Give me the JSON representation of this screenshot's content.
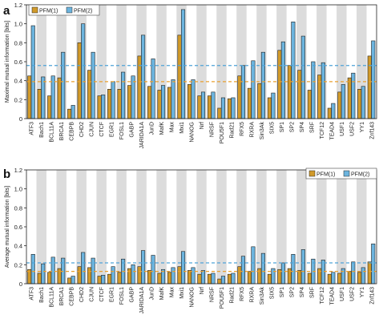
{
  "colors": {
    "pfm1": "#D19A2A",
    "pfm2": "#6CB4DE",
    "stripe": "#DCDCDC",
    "mean_pfm1": "#E8A030",
    "mean_pfm2": "#4FA3D8"
  },
  "chart_data": [
    {
      "panel_label": "a",
      "type": "bar",
      "ylabel": "Maximal mutual information [bits]",
      "ylim": [
        0,
        1.2
      ],
      "yticks": [
        "0",
        "0.2",
        "0.4",
        "0.6",
        "0.8",
        "1.0",
        "1.2"
      ],
      "legend": [
        "PFM(1)",
        "PFM(2)"
      ],
      "legend_position": "top-left",
      "mean_lines": {
        "pfm1": 0.39,
        "pfm2": 0.56
      },
      "categories": [
        "ATF3",
        "Bach1",
        "BCL11A",
        "BRCA1",
        "CEBPB",
        "CHD2",
        "CJUN",
        "CTCF",
        "EGR1",
        "FOSL1",
        "GABP",
        "JARIDA1A",
        "JunD",
        "MafK",
        "Max",
        "Mxi1",
        "NANOG",
        "Nrf",
        "NRSF",
        "POU5F1",
        "Rad21",
        "RFX5",
        "RXRA",
        "Sin3Ak",
        "SIX5",
        "SP1",
        "SP2",
        "SP4",
        "SRF",
        "TCF12",
        "TEAD4",
        "USF1",
        "USF2",
        "YY1",
        "Znf143"
      ],
      "series": [
        {
          "name": "PFM(1)",
          "values": [
            0.45,
            0.31,
            0.24,
            0.43,
            0.1,
            0.8,
            0.51,
            0.24,
            0.31,
            0.31,
            0.35,
            0.66,
            0.34,
            0.3,
            0.33,
            0.88,
            0.36,
            0.24,
            0.24,
            0.11,
            0.21,
            0.45,
            0.32,
            0.37,
            0.22,
            0.72,
            0.56,
            0.51,
            0.3,
            0.46,
            0.11,
            0.28,
            0.43,
            0.31,
            0.66
          ]
        },
        {
          "name": "PFM(2)",
          "values": [
            0.98,
            0.44,
            0.45,
            0.7,
            0.14,
            1.0,
            0.7,
            0.25,
            0.39,
            0.49,
            0.45,
            0.88,
            0.63,
            0.35,
            0.41,
            1.15,
            0.41,
            0.28,
            0.28,
            0.22,
            0.22,
            0.56,
            0.61,
            0.7,
            0.27,
            0.81,
            1.02,
            0.87,
            0.6,
            0.59,
            0.16,
            0.36,
            0.48,
            0.34,
            0.82
          ]
        }
      ]
    },
    {
      "panel_label": "b",
      "type": "bar",
      "ylabel": "Average mutual information [bits]",
      "ylim": [
        0,
        1.2
      ],
      "yticks": [
        "0",
        "0.2",
        "0.4",
        "0.6",
        "0.8",
        "1.0",
        "1.2"
      ],
      "legend": [
        "PFM(1)",
        "PFM(2)"
      ],
      "legend_position": "top-right",
      "mean_lines": {
        "pfm1": 0.13,
        "pfm2": 0.22
      },
      "categories": [
        "ATF3",
        "Bach1",
        "BCL11A",
        "BRCA1",
        "CEBPB",
        "CHD2",
        "CJUN",
        "CTCF",
        "EGR1",
        "FOSL1",
        "GABP",
        "JARIDA1A",
        "JunD",
        "MafK",
        "Max",
        "Mxi1",
        "NANOG",
        "Nrf",
        "NRSF",
        "POU5F1",
        "Rad21",
        "RFX5",
        "RXRA",
        "Sin3Ak",
        "SIX5",
        "SP1",
        "SP2",
        "SP4",
        "SRF",
        "TCF12",
        "TEAD4",
        "USF1",
        "USF2",
        "YY1",
        "Znf143"
      ],
      "series": [
        {
          "name": "PFM(1)",
          "values": [
            0.15,
            0.11,
            0.12,
            0.16,
            0.06,
            0.18,
            0.17,
            0.08,
            0.1,
            0.12,
            0.16,
            0.18,
            0.14,
            0.11,
            0.12,
            0.18,
            0.14,
            0.1,
            0.1,
            0.05,
            0.1,
            0.18,
            0.13,
            0.16,
            0.1,
            0.15,
            0.16,
            0.14,
            0.11,
            0.16,
            0.1,
            0.11,
            0.13,
            0.12,
            0.23
          ]
        },
        {
          "name": "PFM(2)",
          "values": [
            0.31,
            0.21,
            0.28,
            0.27,
            0.08,
            0.33,
            0.27,
            0.09,
            0.18,
            0.26,
            0.2,
            0.35,
            0.3,
            0.15,
            0.17,
            0.34,
            0.17,
            0.14,
            0.11,
            0.08,
            0.11,
            0.29,
            0.39,
            0.32,
            0.16,
            0.22,
            0.31,
            0.36,
            0.26,
            0.25,
            0.12,
            0.16,
            0.23,
            0.17,
            0.42
          ]
        }
      ]
    }
  ]
}
